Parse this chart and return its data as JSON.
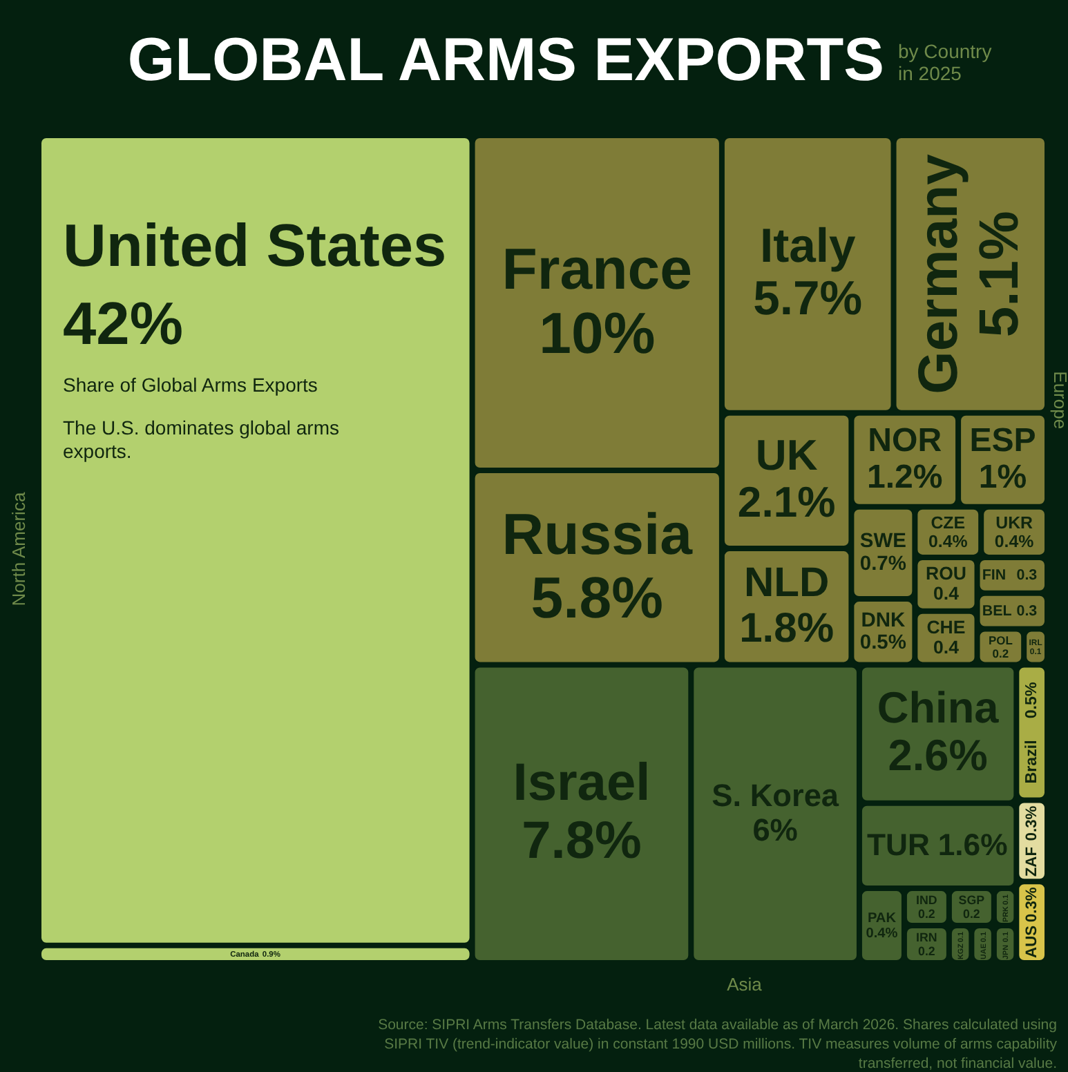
{
  "chart_data": {
    "type": "other",
    "title": "GLOBAL ARMS EXPORTS",
    "subtitle": "by Country in 2025",
    "categories": [
      "United States",
      "Canada",
      "France",
      "Russia",
      "Italy",
      "Germany",
      "UK",
      "NLD",
      "NOR",
      "ESP",
      "SWE",
      "DNK",
      "CZE",
      "UKR",
      "FIN",
      "ROU",
      "CHE",
      "BEL",
      "POL",
      "IRL",
      "Israel",
      "S. Korea",
      "China",
      "TUR",
      "PAK",
      "IND",
      "IRN",
      "SGP",
      "PRK",
      "KGZ",
      "UAE",
      "JPN",
      "Brazil",
      "ZAF",
      "AUS"
    ],
    "values": [
      42,
      0.9,
      10,
      5.8,
      5.7,
      5.1,
      2.1,
      1.8,
      1.2,
      1,
      0.7,
      0.5,
      0.4,
      0.4,
      0.3,
      0.4,
      0.4,
      0.3,
      0.2,
      0.1,
      7.8,
      6,
      2.6,
      1.6,
      0.4,
      0.2,
      0.2,
      0.2,
      0.1,
      0.1,
      0.1,
      0.1,
      0.5,
      0.3,
      0.3
    ],
    "colors": [
      "#b3d06e",
      "#b3d06e",
      "#7f7c37",
      "#7f7c37",
      "#7f7c37",
      "#7f7c37",
      "#7f7c37",
      "#7f7c37",
      "#7f7c37",
      "#7f7c37",
      "#7f7c37",
      "#7f7c37",
      "#7f7c37",
      "#7f7c37",
      "#7f7c37",
      "#7f7c37",
      "#7f7c37",
      "#7f7c37",
      "#7f7c37",
      "#7f7c37",
      "#45622f",
      "#45622f",
      "#45622f",
      "#45622f",
      "#45622f",
      "#45622f",
      "#45622f",
      "#45622f",
      "#45622f",
      "#45622f",
      "#45622f",
      "#45622f",
      "#a9ad45",
      "#e3dca0",
      "#d8c44a"
    ],
    "value_labels": [
      "42%",
      "0.9%",
      "10%",
      "5.8%",
      "5.7%",
      "5.1%",
      "2.1%",
      "1.8%",
      "1.2%",
      "1%",
      "0.7%",
      "0.5%",
      "0.4%",
      "0.4%",
      "0.3",
      "0.4",
      "0.4",
      "0.3",
      "0.2",
      "0.1",
      "7.8%",
      "6%",
      "2.6%",
      "1.6%",
      "0.4%",
      "0.2",
      "0.2",
      "0.2",
      "0.1",
      "0.1",
      "0.1",
      "0.1",
      "0.5%",
      "0.3%",
      "0.3%"
    ],
    "annotations": [
      "North America",
      "Europe",
      "Asia",
      "Share of Global Arms Exports",
      "The U.S. dominates global arms exports.",
      "Source: SIPRI Arms Transfers Database. Latest data available as of March 2026. Shares calculated using SIPRI TIV (trend-indicator value) in constant 1990 USD millions. TIV measures volume of arms capability transferred, not financial value."
    ]
  }
}
